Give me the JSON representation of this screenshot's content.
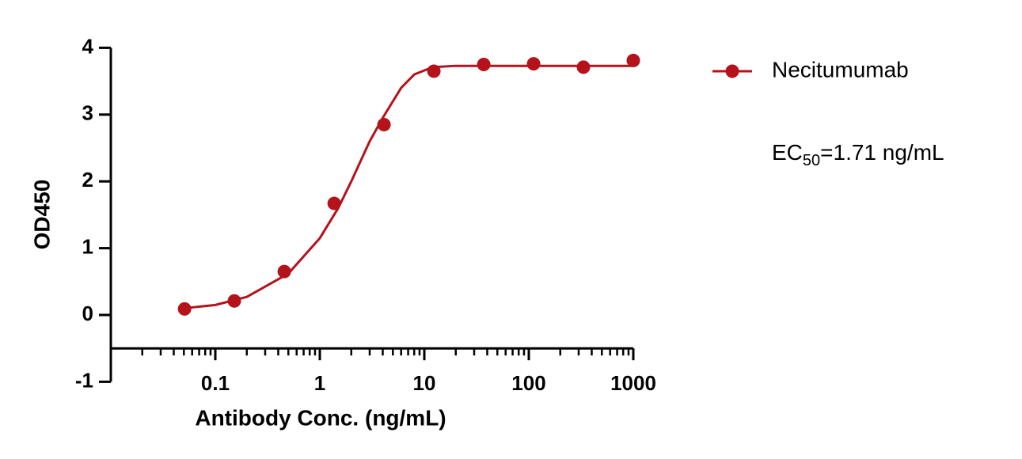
{
  "chart_data": {
    "type": "scatter",
    "x_label": "Antibody Conc. (ng/mL)",
    "y_label": "OD450",
    "xscale": "log",
    "xlim": [
      0.01,
      1000
    ],
    "ylim": [
      -1,
      4
    ],
    "x_axis_at": -0.5,
    "xticks": [
      0.1,
      1,
      10,
      100,
      1000
    ],
    "xminor_ticks": [
      0.02,
      0.03,
      0.04,
      0.05,
      0.06,
      0.07,
      0.08,
      0.09,
      0.2,
      0.3,
      0.4,
      0.5,
      0.6,
      0.7,
      0.8,
      0.9,
      2,
      3,
      4,
      5,
      6,
      7,
      8,
      9,
      20,
      30,
      40,
      50,
      60,
      70,
      80,
      90,
      200,
      300,
      400,
      500,
      600,
      700,
      800,
      900
    ],
    "yticks": [
      -1,
      0,
      1,
      2,
      3,
      4
    ],
    "series": [
      {
        "name": "Necitumumab",
        "color": "#b5121b",
        "x": [
          0.0508,
          0.152,
          0.457,
          1.372,
          4.115,
          12.35,
          37.04,
          111.1,
          333.3,
          1000
        ],
        "values": [
          0.09,
          0.21,
          0.65,
          1.67,
          2.85,
          3.65,
          3.75,
          3.76,
          3.71,
          3.81
        ],
        "fit_x": [
          0.05,
          0.1,
          0.2,
          0.5,
          1,
          1.5,
          2,
          3,
          4,
          6,
          8,
          12,
          20,
          50,
          1000
        ],
        "fit_values": [
          0.1,
          0.15,
          0.27,
          0.62,
          1.15,
          1.6,
          2.0,
          2.6,
          2.95,
          3.4,
          3.6,
          3.71,
          3.73,
          3.73,
          3.73
        ]
      }
    ],
    "annotation": {
      "text": "EC",
      "sub": "50",
      "rest": "=1.71 ng/mL"
    },
    "legend": "right"
  }
}
